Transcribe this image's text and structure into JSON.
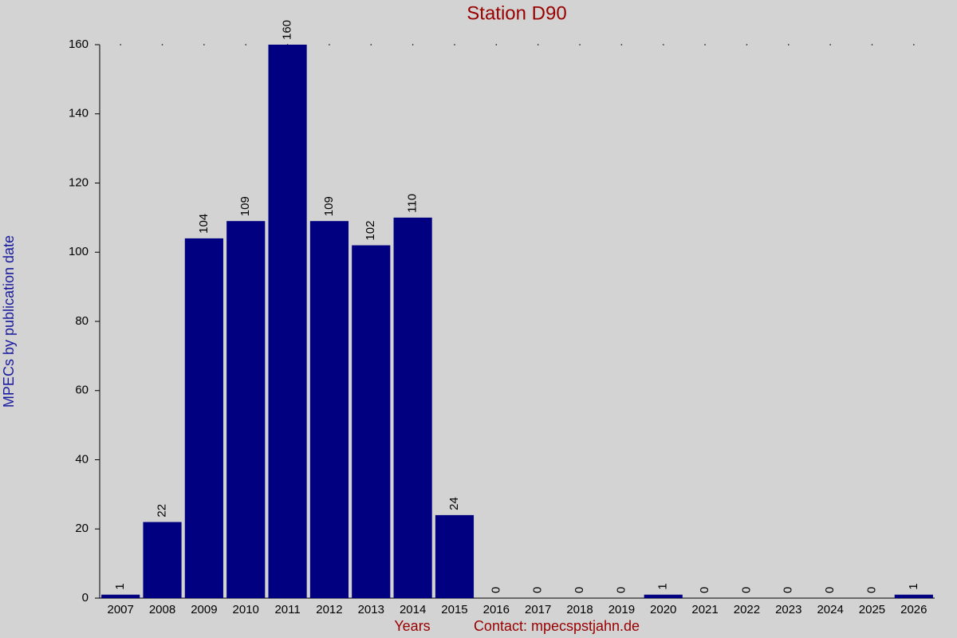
{
  "chart_data": {
    "type": "bar",
    "title": "Station D90",
    "x_label": "Years",
    "contact": "Contact: mpecspstjahn.de",
    "y_label": "MPECs by publication date",
    "categories": [
      "2007",
      "2008",
      "2009",
      "2010",
      "2011",
      "2012",
      "2013",
      "2014",
      "2015",
      "2016",
      "2017",
      "2018",
      "2019",
      "2020",
      "2021",
      "2022",
      "2023",
      "2024",
      "2025",
      "2026"
    ],
    "values": [
      1,
      22,
      104,
      109,
      160,
      109,
      102,
      110,
      24,
      0,
      0,
      0,
      0,
      1,
      0,
      0,
      0,
      0,
      0,
      1
    ],
    "color": "#000080",
    "ylim": [
      0,
      160
    ],
    "yticks": [
      0,
      20,
      40,
      60,
      80,
      100,
      120,
      140,
      160
    ],
    "grid": false
  }
}
